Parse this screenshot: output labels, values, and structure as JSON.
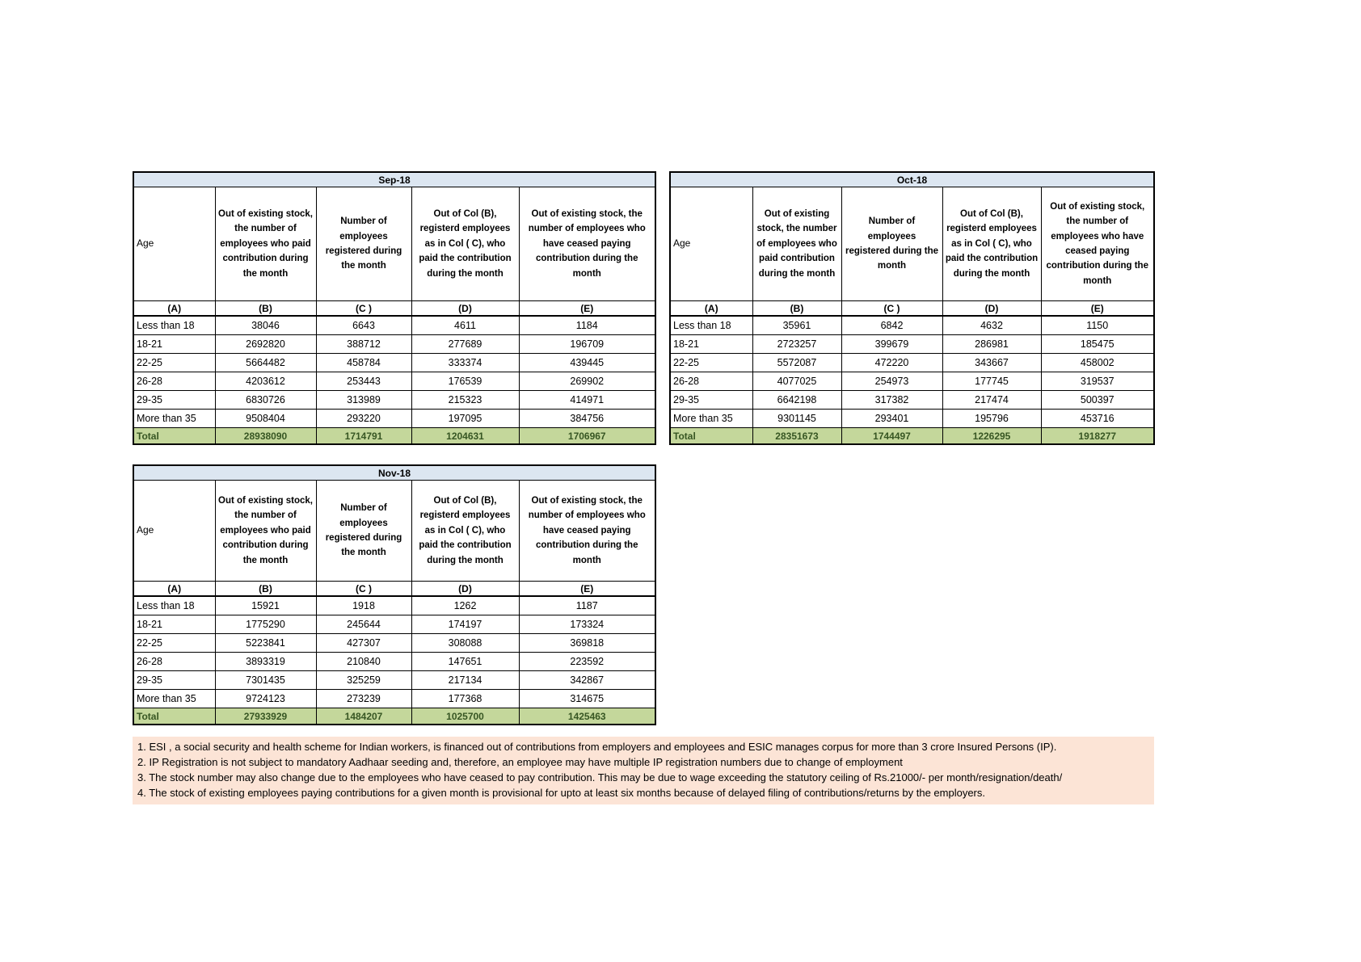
{
  "colors": {
    "month_header_bg": "#dce6f1",
    "total_row_bg": "#c4d79b",
    "total_row_text": "#375623",
    "notes_bg": "#fce4d6",
    "border": "#000000"
  },
  "headers": {
    "age": "Age",
    "col_b": "Out of existing stock, the number of employees who paid contribution during the month",
    "col_c": "Number of employees registered during the month",
    "col_d": "Out of Col (B), registerd employees as in Col ( C), who paid the contribution during the month",
    "col_e": "Out of existing stock, the number of employees who have ceased paying contribution during the month"
  },
  "column_letters": [
    "(A)",
    "(B)",
    "(C )",
    "(D)",
    "(E)"
  ],
  "tables": [
    {
      "month": "Sep-18",
      "rows": [
        [
          "Less than 18",
          "38046",
          "6643",
          "4611",
          "1184"
        ],
        [
          "18-21",
          "2692820",
          "388712",
          "277689",
          "196709"
        ],
        [
          "22-25",
          "5664482",
          "458784",
          "333374",
          "439445"
        ],
        [
          "26-28",
          "4203612",
          "253443",
          "176539",
          "269902"
        ],
        [
          "29-35",
          "6830726",
          "313989",
          "215323",
          "414971"
        ],
        [
          "More than 35",
          "9508404",
          "293220",
          "197095",
          "384756"
        ]
      ],
      "total": [
        "Total",
        "28938090",
        "1714791",
        "1204631",
        "1706967"
      ]
    },
    {
      "month": "Oct-18",
      "rows": [
        [
          "Less than 18",
          "35961",
          "6842",
          "4632",
          "1150"
        ],
        [
          "18-21",
          "2723257",
          "399679",
          "286981",
          "185475"
        ],
        [
          "22-25",
          "5572087",
          "472220",
          "343667",
          "458002"
        ],
        [
          "26-28",
          "4077025",
          "254973",
          "177745",
          "319537"
        ],
        [
          "29-35",
          "6642198",
          "317382",
          "217474",
          "500397"
        ],
        [
          "More than 35",
          "9301145",
          "293401",
          "195796",
          "453716"
        ]
      ],
      "total": [
        "Total",
        "28351673",
        "1744497",
        "1226295",
        "1918277"
      ]
    },
    {
      "month": "Nov-18",
      "rows": [
        [
          "Less than 18",
          "15921",
          "1918",
          "1262",
          "1187"
        ],
        [
          "18-21",
          "1775290",
          "245644",
          "174197",
          "173324"
        ],
        [
          "22-25",
          "5223841",
          "427307",
          "308088",
          "369818"
        ],
        [
          "26-28",
          "3893319",
          "210840",
          "147651",
          "223592"
        ],
        [
          "29-35",
          "7301435",
          "325259",
          "217134",
          "342867"
        ],
        [
          "More than 35",
          "9724123",
          "273239",
          "177368",
          "314675"
        ]
      ],
      "total": [
        "Total",
        "27933929",
        "1484207",
        "1025700",
        "1425463"
      ]
    }
  ],
  "notes": [
    "1. ESI , a social security and health scheme for Indian workers, is financed out of contributions from employers and employees and ESIC manages corpus for more than 3 crore Insured Persons (IP).",
    "2. IP Registration is not subject to mandatory Aadhaar seeding and, therefore, an employee may have multiple IP registration numbers due to change of employment",
    "3. The stock number may also change due to the employees who have ceased to pay contribution. This may  be due to wage exceeding the statutory ceiling of  Rs.21000/- per month/resignation/death/",
    "4. The stock of existing employees paying contributions for a given month is provisional for upto at least six months because of delayed filing of contributions/returns by the employers."
  ]
}
